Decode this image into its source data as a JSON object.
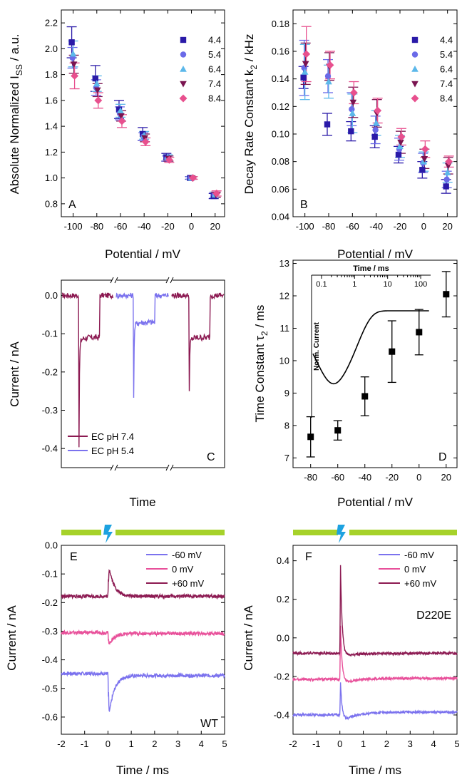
{
  "panels": {
    "A": {
      "label": "A",
      "xlabel": "Potential / mV",
      "ylabel_main": "Absolute Normalized I",
      "ylabel_sub": "SS",
      "ylabel_unit": " / a.u."
    },
    "B": {
      "label": "B",
      "xlabel": "Potential / mV",
      "ylabel_main": "Decay Rate Constant k",
      "ylabel_sub": "2",
      "ylabel_unit": " / kHz"
    },
    "C": {
      "label": "C",
      "xlabel": "Time",
      "ylabel": "Current / nA",
      "legend": [
        "EC pH 7.4",
        "EC pH 5.4"
      ]
    },
    "D": {
      "label": "D",
      "xlabel": "Potential / mV",
      "ylabel_main": "Time Constant τ",
      "ylabel_sub": "2",
      "ylabel_unit": " / ms",
      "inset_xlabel": "Time / ms",
      "inset_ylabel": "Norm. Current",
      "inset_ticks": [
        "0.1",
        "1",
        "10",
        "100"
      ]
    },
    "E": {
      "label": "E",
      "xlabel": "Time / ms",
      "ylabel": "Current / nA",
      "tag": "WT",
      "legend": [
        "-60 mV",
        "0 mV",
        "+60 mV"
      ]
    },
    "F": {
      "label": "F",
      "xlabel": "Time / ms",
      "ylabel": "Current / nA",
      "tag": "D220E",
      "legend": [
        "-60 mV",
        "0 mV",
        "+60 mV"
      ]
    }
  },
  "colors": {
    "pH4_4": "#2a1aa8",
    "pH5_4": "#6a6ae8",
    "pH6_4": "#5cb8ea",
    "pH7_4": "#7a1450",
    "pH8_4": "#e8508e",
    "trace_74": "#8c1a52",
    "trace_54": "#7b72ee",
    "neg60": "#7b72ee",
    "zero": "#e8509a",
    "pos60": "#8c1a52",
    "light_bar": "#a6d22a",
    "flash": "#1da2e0"
  },
  "chart_data": [
    {
      "panel": "A",
      "type": "scatter",
      "xlim": [
        -110,
        28
      ],
      "ylim": [
        0.7,
        2.3
      ],
      "xticks": [
        -100,
        -80,
        -60,
        -40,
        -20,
        0,
        20
      ],
      "yticks": [
        0.8,
        1.0,
        1.2,
        1.4,
        1.6,
        1.8,
        2.0,
        2.2
      ],
      "x": [
        -100,
        -80,
        -60,
        -40,
        -20,
        0,
        20
      ],
      "series": [
        {
          "name": "4.4",
          "marker": "square",
          "color": "#2a1aa8",
          "values": [
            2.05,
            1.77,
            1.53,
            1.34,
            1.16,
            1.0,
            0.86
          ],
          "err": [
            0.12,
            0.1,
            0.07,
            0.05,
            0.03,
            0.01,
            0.02
          ]
        },
        {
          "name": "5.4",
          "marker": "circle",
          "color": "#6a6ae8",
          "values": [
            1.93,
            1.7,
            1.5,
            1.32,
            1.15,
            1.0,
            0.87
          ],
          "err": [
            0.08,
            0.06,
            0.05,
            0.03,
            0.02,
            0.01,
            0.02
          ]
        },
        {
          "name": "6.4",
          "marker": "triangle-up",
          "color": "#5cb8ea",
          "values": [
            1.96,
            1.73,
            1.52,
            1.33,
            1.16,
            1.0,
            0.87
          ],
          "err": [
            0.1,
            0.06,
            0.05,
            0.03,
            0.02,
            0.01,
            0.02
          ]
        },
        {
          "name": "7.4",
          "marker": "triangle-down",
          "color": "#7a1450",
          "values": [
            1.88,
            1.68,
            1.48,
            1.31,
            1.15,
            1.0,
            0.87
          ],
          "err": [
            0.07,
            0.05,
            0.04,
            0.03,
            0.02,
            0.01,
            0.02
          ]
        },
        {
          "name": "8.4",
          "marker": "diamond",
          "color": "#e8508e",
          "values": [
            1.79,
            1.6,
            1.44,
            1.28,
            1.14,
            1.0,
            0.88
          ],
          "err": [
            0.1,
            0.06,
            0.05,
            0.03,
            0.02,
            0.01,
            0.02
          ]
        }
      ]
    },
    {
      "panel": "B",
      "type": "scatter",
      "xlim": [
        -110,
        28
      ],
      "ylim": [
        0.04,
        0.19
      ],
      "xticks": [
        -100,
        -80,
        -60,
        -40,
        -20,
        0,
        20
      ],
      "yticks": [
        0.04,
        0.06,
        0.08,
        0.1,
        0.12,
        0.14,
        0.16,
        0.18
      ],
      "x": [
        -100,
        -80,
        -60,
        -40,
        -20,
        0,
        20
      ],
      "series": [
        {
          "name": "4.4",
          "marker": "square",
          "color": "#2a1aa8",
          "values": [
            0.141,
            0.107,
            0.102,
            0.098,
            0.085,
            0.074,
            0.062
          ],
          "err": [
            0.008,
            0.008,
            0.007,
            0.008,
            0.006,
            0.006,
            0.005
          ]
        },
        {
          "name": "5.4",
          "marker": "circle",
          "color": "#6a6ae8",
          "values": [
            0.148,
            0.142,
            0.118,
            0.103,
            0.089,
            0.079,
            0.067
          ],
          "err": [
            0.02,
            0.012,
            0.012,
            0.01,
            0.008,
            0.007,
            0.006
          ]
        },
        {
          "name": "6.4",
          "marker": "triangle-up",
          "color": "#5cb8ea",
          "values": [
            0.145,
            0.138,
            0.115,
            0.108,
            0.091,
            0.08,
            0.072
          ],
          "err": [
            0.02,
            0.012,
            0.014,
            0.009,
            0.008,
            0.007,
            0.007
          ]
        },
        {
          "name": "7.4",
          "marker": "triangle-down",
          "color": "#7a1450",
          "values": [
            0.151,
            0.149,
            0.123,
            0.115,
            0.094,
            0.082,
            0.077
          ],
          "err": [
            0.015,
            0.01,
            0.011,
            0.01,
            0.008,
            0.007,
            0.006
          ]
        },
        {
          "name": "8.4",
          "marker": "diamond",
          "color": "#e8508e",
          "values": [
            0.158,
            0.15,
            0.13,
            0.117,
            0.098,
            0.089,
            0.08
          ],
          "err": [
            0.02,
            0.01,
            0.008,
            0.009,
            0.006,
            0.006,
            0.004
          ]
        }
      ]
    },
    {
      "panel": "C",
      "type": "line",
      "ylim": [
        -0.45,
        0.04
      ],
      "yticks": [
        0.0,
        -0.1,
        -0.2,
        -0.3,
        -0.4
      ],
      "description_free_segments": [
        {
          "series": "EC pH 7.4",
          "baseline": 0.0,
          "steady": -0.11,
          "peak": -0.425
        },
        {
          "series": "EC pH 5.4",
          "baseline": 0.0,
          "steady": -0.07,
          "peak": -0.295
        },
        {
          "series": "EC pH 7.4",
          "baseline": 0.0,
          "steady": -0.11,
          "peak": -0.39
        }
      ]
    },
    {
      "panel": "D",
      "type": "scatter",
      "xlim": [
        -93,
        28
      ],
      "ylim": [
        6.7,
        13.1
      ],
      "xticks": [
        -80,
        -60,
        -40,
        -20,
        0,
        20
      ],
      "yticks": [
        7,
        8,
        9,
        10,
        11,
        12,
        13
      ],
      "x": [
        -80,
        -60,
        -40,
        -20,
        0,
        20
      ],
      "y": [
        7.65,
        7.85,
        8.9,
        10.28,
        10.88,
        12.05
      ],
      "err": [
        0.62,
        0.3,
        0.6,
        0.95,
        0.7,
        0.7
      ]
    },
    {
      "panel": "E",
      "type": "line",
      "xlim": [
        -2,
        5
      ],
      "ylim": [
        -0.66,
        0.0
      ],
      "xticks": [
        -2,
        -1,
        0,
        1,
        2,
        3,
        4,
        5
      ],
      "yticks": [
        0.0,
        -0.1,
        -0.2,
        -0.3,
        -0.4,
        -0.5,
        -0.6
      ],
      "series": [
        {
          "name": "-60 mV",
          "baseline": -0.448,
          "peak": -0.615,
          "steady": -0.455
        },
        {
          "name": "0 mV",
          "baseline": -0.305,
          "peak": -0.352,
          "steady": -0.308
        },
        {
          "name": "+60 mV",
          "baseline": -0.178,
          "peak": -0.058,
          "steady": -0.178
        }
      ]
    },
    {
      "panel": "F",
      "type": "line",
      "xlim": [
        -2,
        5
      ],
      "ylim": [
        -0.5,
        0.48
      ],
      "xticks": [
        -2,
        -1,
        0,
        1,
        2,
        3,
        4,
        5
      ],
      "yticks": [
        0.4,
        0.2,
        0.0,
        -0.2,
        -0.4
      ],
      "series": [
        {
          "name": "-60 mV",
          "baseline": -0.4,
          "peak": -0.2,
          "undershoot": -0.44,
          "steady": -0.385
        },
        {
          "name": "0 mV",
          "baseline": -0.215,
          "peak": 0.1,
          "undershoot": -0.24,
          "steady": -0.21
        },
        {
          "name": "+60 mV",
          "baseline": -0.08,
          "peak": 0.43,
          "undershoot": -0.1,
          "steady": -0.08
        }
      ]
    }
  ]
}
